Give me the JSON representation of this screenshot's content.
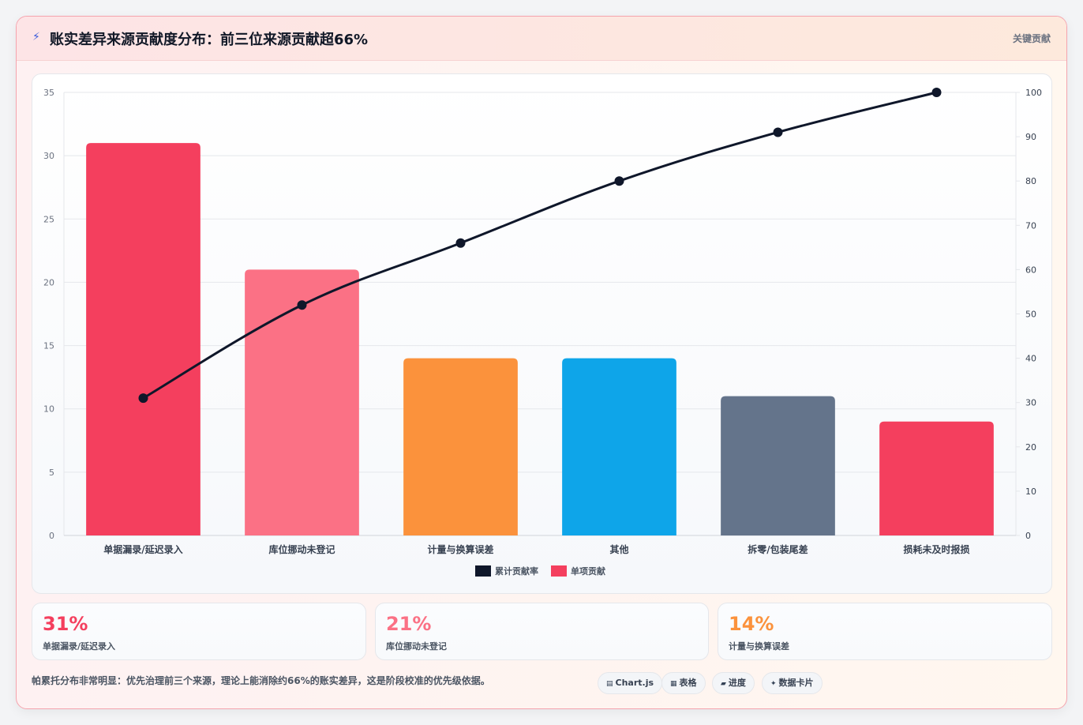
{
  "header": {
    "icon": "lightning-icon",
    "title": "账实差异来源贡献度分布：前三位来源贡献超66%",
    "tag": "关键贡献"
  },
  "chart_data": {
    "type": "bar",
    "categories": [
      "单据漏录/延迟录入",
      "库位挪动未登记",
      "计量与换算误差",
      "其他",
      "拆零/包装尾差",
      "损耗未及时报损"
    ],
    "series": [
      {
        "name": "单项贡献",
        "type": "bar",
        "axis": "left",
        "values": [
          31,
          21,
          14,
          14,
          11,
          9
        ],
        "colors": [
          "#f43f5e",
          "#fb7185",
          "#fb923c",
          "#0ea5e9",
          "#64748b",
          "#f43f5e"
        ]
      },
      {
        "name": "累计贡献率",
        "type": "line",
        "axis": "right",
        "values": [
          31,
          52,
          66,
          80,
          91,
          100
        ],
        "color": "#0f172a"
      }
    ],
    "ylim": [
      0,
      35
    ],
    "yticks": [
      0,
      5,
      10,
      15,
      20,
      25,
      30,
      35
    ],
    "y2lim": [
      0,
      100
    ],
    "y2ticks": [
      0,
      10,
      20,
      30,
      40,
      50,
      60,
      70,
      80,
      90,
      100
    ],
    "legend": [
      {
        "label": "累计贡献率",
        "color": "#0f172a"
      },
      {
        "label": "单项贡献",
        "color": "#f43f5e"
      }
    ],
    "legend_position": "bottom",
    "grid": true
  },
  "kpis": [
    {
      "value": "31%",
      "label": "单据漏录/延迟录入",
      "color": "#f43f5e"
    },
    {
      "value": "21%",
      "label": "库位挪动未登记",
      "color": "#fb7185"
    },
    {
      "value": "14%",
      "label": "计量与换算误差",
      "color": "#fb923c"
    }
  ],
  "footer": {
    "note": "帕累托分布非常明显：优先治理前三个来源，理论上能消除约66%的账实差异，这是阶段校准的优先级依据。",
    "pills": [
      {
        "icon": "chart-icon",
        "glyph": "▤",
        "label": "Chart.js"
      },
      {
        "icon": "table-icon",
        "glyph": "▦",
        "label": "表格"
      },
      {
        "icon": "progress-icon",
        "glyph": "▰",
        "label": "进度"
      },
      {
        "icon": "sparkle-icon",
        "glyph": "✦",
        "label": "数据卡片"
      }
    ]
  }
}
